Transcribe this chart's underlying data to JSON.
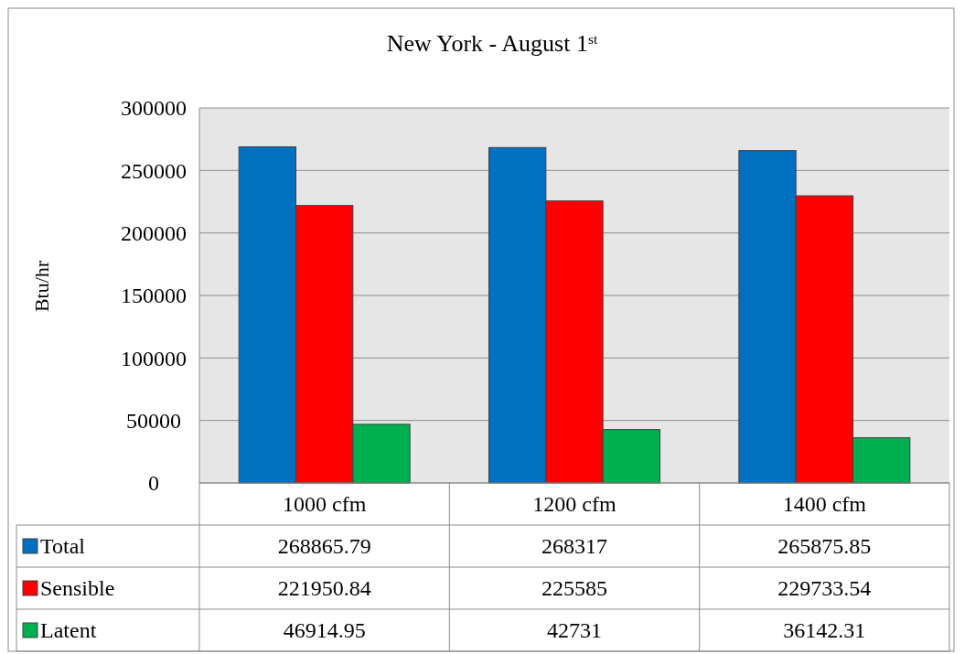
{
  "chart_data": {
    "type": "bar",
    "title": "New York - August 1$^{st}$",
    "ylabel": "Btu/hr",
    "categories": [
      "1000 cfm",
      "1200 cfm",
      "1400 cfm"
    ],
    "series": [
      {
        "name": "Total",
        "color": "#0070c0",
        "values": [
          268865.79,
          268317,
          265875.85
        ]
      },
      {
        "name": "Sensible",
        "color": "#ff0000",
        "values": [
          221950.84,
          225585,
          229733.54
        ]
      },
      {
        "name": "Latent",
        "color": "#00b050",
        "values": [
          46914.95,
          42731,
          36142.31
        ]
      }
    ],
    "ylim": [
      0,
      300000
    ],
    "yticks": [
      0,
      50000,
      100000,
      150000,
      200000,
      250000,
      300000
    ],
    "grid": "y",
    "legend": "bottom",
    "data_labels": true
  }
}
